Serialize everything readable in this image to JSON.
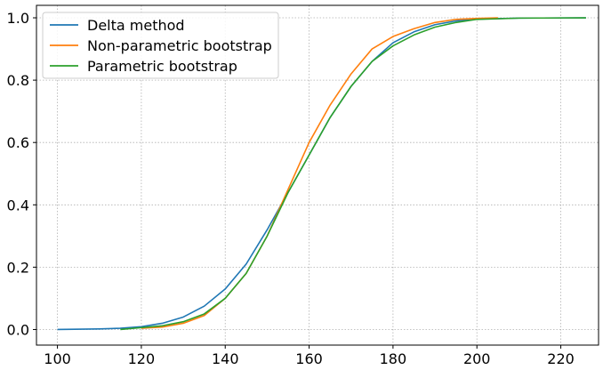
{
  "chart_data": {
    "type": "line",
    "title": "",
    "xlabel": "",
    "ylabel": "",
    "xlim": [
      95,
      229
    ],
    "ylim": [
      -0.05,
      1.04
    ],
    "x_ticks": [
      100,
      120,
      140,
      160,
      180,
      200,
      220
    ],
    "y_ticks": [
      0.0,
      0.2,
      0.4,
      0.6,
      0.8,
      1.0
    ],
    "x_tick_labels": [
      "100",
      "120",
      "140",
      "160",
      "180",
      "200",
      "220"
    ],
    "y_tick_labels": [
      "0.0",
      "0.2",
      "0.4",
      "0.6",
      "0.8",
      "1.0"
    ],
    "grid": true,
    "legend_position": "top-left",
    "series": [
      {
        "name": "Delta method",
        "color": "#1f77b4",
        "x": [
          100,
          110,
          115,
          120,
          125,
          130,
          135,
          140,
          145,
          150,
          155,
          160,
          165,
          170,
          175,
          180,
          185,
          190,
          195,
          200,
          210,
          226
        ],
        "y": [
          0.0,
          0.002,
          0.004,
          0.009,
          0.02,
          0.04,
          0.075,
          0.13,
          0.21,
          0.32,
          0.44,
          0.56,
          0.68,
          0.78,
          0.86,
          0.92,
          0.955,
          0.978,
          0.99,
          0.996,
          0.999,
          1.0
        ]
      },
      {
        "name": "Non-parametric bootstrap",
        "color": "#ff7f0e",
        "x": [
          120,
          125,
          130,
          135,
          140,
          145,
          150,
          155,
          160,
          165,
          170,
          175,
          180,
          185,
          190,
          195,
          200,
          205
        ],
        "y": [
          0.004,
          0.008,
          0.02,
          0.045,
          0.1,
          0.18,
          0.3,
          0.45,
          0.6,
          0.72,
          0.82,
          0.9,
          0.94,
          0.965,
          0.985,
          0.995,
          0.998,
          1.0
        ]
      },
      {
        "name": "Parametric bootstrap",
        "color": "#2ca02c",
        "x": [
          115,
          120,
          125,
          130,
          135,
          140,
          145,
          150,
          155,
          160,
          165,
          170,
          175,
          180,
          185,
          190,
          195,
          200,
          210,
          226
        ],
        "y": [
          0.0,
          0.006,
          0.012,
          0.025,
          0.05,
          0.1,
          0.18,
          0.3,
          0.44,
          0.56,
          0.68,
          0.78,
          0.86,
          0.91,
          0.945,
          0.97,
          0.985,
          0.995,
          0.999,
          1.0
        ]
      }
    ]
  }
}
